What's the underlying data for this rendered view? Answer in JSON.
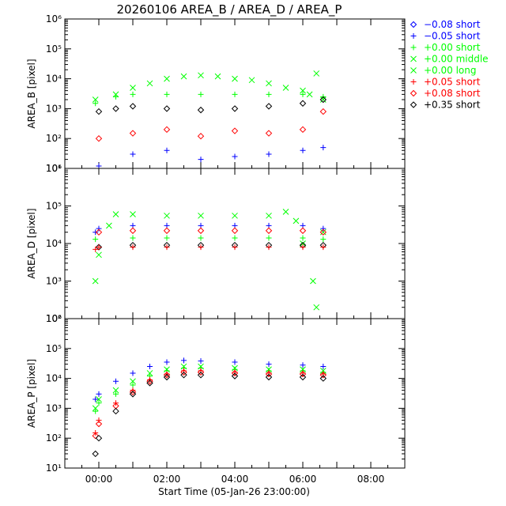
{
  "title": "20260106 AREA_B / AREA_D / AREA_P",
  "xlabel": "Start Time (05-Jan-26 23:00:00)",
  "colors": {
    "blue": "#0000ff",
    "green": "#00ff00",
    "red": "#ff0000",
    "black": "#000000"
  },
  "legend": [
    {
      "sym": "diamond",
      "color": "#0000ff",
      "text": "−0.08 short"
    },
    {
      "sym": "plus",
      "color": "#0000ff",
      "text": "−0.05 short"
    },
    {
      "sym": "plus",
      "color": "#00ff00",
      "text": "+0.00 short"
    },
    {
      "sym": "x",
      "color": "#00ff00",
      "text": "+0.00 middle"
    },
    {
      "sym": "x",
      "color": "#00ff00",
      "text": "+0.00 long"
    },
    {
      "sym": "plus",
      "color": "#ff0000",
      "text": "+0.05 short"
    },
    {
      "sym": "diamond",
      "color": "#ff0000",
      "text": "+0.08 short"
    },
    {
      "sym": "diamond",
      "color": "#000000",
      "text": "+0.35 short"
    }
  ],
  "chart_data": [
    {
      "type": "scatter",
      "ylabel": "AREA_B [pixel]",
      "xlim": [
        -1,
        9
      ],
      "ylim": [
        1,
        6
      ],
      "yscale": "log",
      "xticks": [
        "00:00",
        "02:00",
        "04:00",
        "06:00",
        "08:00"
      ],
      "yticks": [
        "10¹",
        "10²",
        "10³",
        "10⁴",
        "10⁵",
        "10⁶"
      ],
      "series": [
        {
          "color": "#00ff00",
          "sym": "x",
          "x": [
            -0.1,
            0.5,
            1,
            1.5,
            2,
            2.5,
            3,
            3.5,
            4,
            4.5,
            5,
            5.5,
            6,
            6.2,
            6.4,
            6.6
          ],
          "y": [
            2000,
            3000,
            5000,
            7000,
            10000,
            12000,
            13000,
            12000,
            10000,
            9000,
            7000,
            5000,
            4000,
            3000,
            15000,
            2000
          ]
        },
        {
          "color": "#00ff00",
          "sym": "plus",
          "x": [
            -0.1,
            0.5,
            1,
            2,
            3,
            4,
            5,
            6,
            6.6
          ],
          "y": [
            1500,
            2500,
            3000,
            3000,
            3000,
            3000,
            3000,
            3000,
            2500
          ]
        },
        {
          "color": "#000000",
          "sym": "diamond",
          "x": [
            0,
            0.5,
            1,
            2,
            3,
            4,
            5,
            6,
            6.6
          ],
          "y": [
            800,
            1000,
            1200,
            1000,
            900,
            1000,
            1200,
            1500,
            2000
          ]
        },
        {
          "color": "#ff0000",
          "sym": "diamond",
          "x": [
            0,
            1,
            2,
            3,
            4,
            5,
            6,
            6.6
          ],
          "y": [
            100,
            150,
            200,
            120,
            180,
            150,
            200,
            800
          ]
        },
        {
          "color": "#0000ff",
          "sym": "plus",
          "x": [
            0,
            1,
            2,
            3,
            4,
            5,
            6,
            6.6
          ],
          "y": [
            12,
            30,
            40,
            20,
            25,
            30,
            40,
            50
          ]
        }
      ]
    },
    {
      "type": "scatter",
      "ylabel": "AREA_D [pixel]",
      "xlim": [
        -1,
        9
      ],
      "ylim": [
        2,
        6
      ],
      "yscale": "log",
      "xticks": [
        "00:00",
        "02:00",
        "04:00",
        "06:00",
        "08:00"
      ],
      "yticks": [
        "10²",
        "10³",
        "10⁴",
        "10⁵",
        "10⁶"
      ],
      "series": [
        {
          "color": "#00ff00",
          "sym": "x",
          "x": [
            -0.1,
            0,
            0.3,
            0.5,
            1,
            2,
            3,
            4,
            5,
            5.5,
            5.8,
            6,
            6.3,
            6.4,
            6.6
          ],
          "y": [
            1000,
            5000,
            30000,
            60000,
            60000,
            55000,
            55000,
            55000,
            55000,
            70000,
            40000,
            10000,
            1000,
            200,
            20000
          ]
        },
        {
          "color": "#0000ff",
          "sym": "plus",
          "x": [
            -0.1,
            0,
            1,
            2,
            3,
            4,
            5,
            6,
            6.6
          ],
          "y": [
            20000,
            25000,
            30000,
            30000,
            30000,
            30000,
            30000,
            30000,
            25000
          ]
        },
        {
          "color": "#ff0000",
          "sym": "diamond",
          "x": [
            0,
            1,
            2,
            3,
            4,
            5,
            6,
            6.6
          ],
          "y": [
            20000,
            22000,
            22000,
            22000,
            22000,
            22000,
            22000,
            20000
          ]
        },
        {
          "color": "#00ff00",
          "sym": "plus",
          "x": [
            -0.1,
            1,
            2,
            3,
            4,
            5,
            6,
            6.6
          ],
          "y": [
            13000,
            14000,
            14000,
            14000,
            14000,
            14000,
            14000,
            13000
          ]
        },
        {
          "color": "#000000",
          "sym": "diamond",
          "x": [
            0,
            1,
            2,
            3,
            4,
            5,
            6,
            6.6
          ],
          "y": [
            8000,
            9000,
            9000,
            9000,
            9000,
            9000,
            9000,
            9000
          ]
        },
        {
          "color": "#ff0000",
          "sym": "plus",
          "x": [
            -0.1,
            0,
            1,
            2,
            3,
            4,
            5,
            6,
            6.6
          ],
          "y": [
            7000,
            8000,
            8000,
            8000,
            8000,
            8000,
            8000,
            8000,
            8000
          ]
        }
      ]
    },
    {
      "type": "scatter",
      "ylabel": "AREA_P [pixel]",
      "xlim": [
        -1,
        9
      ],
      "ylim": [
        1,
        6
      ],
      "yscale": "log",
      "xticks": [
        "00:00",
        "02:00",
        "04:00",
        "06:00",
        "08:00"
      ],
      "yticks": [
        "10¹",
        "10²",
        "10³",
        "10⁴",
        "10⁵",
        "10⁶"
      ],
      "series": [
        {
          "color": "#0000ff",
          "sym": "plus",
          "x": [
            -0.1,
            0,
            0.5,
            1,
            1.5,
            2,
            2.5,
            3,
            4,
            5,
            6,
            6.6
          ],
          "y": [
            2000,
            3000,
            8000,
            15000,
            25000,
            35000,
            40000,
            38000,
            35000,
            30000,
            28000,
            25000
          ]
        },
        {
          "color": "#00ff00",
          "sym": "x",
          "x": [
            -0.1,
            0,
            0.5,
            1,
            1.5,
            2,
            2.5,
            3,
            4,
            5,
            6,
            6.6
          ],
          "y": [
            1000,
            2000,
            4000,
            8000,
            15000,
            20000,
            25000,
            25000,
            22000,
            20000,
            20000,
            18000
          ]
        },
        {
          "color": "#00ff00",
          "sym": "plus",
          "x": [
            -0.1,
            0,
            0.5,
            1,
            1.5,
            2,
            2.5,
            3,
            4,
            5,
            6,
            6.6
          ],
          "y": [
            800,
            1500,
            3000,
            6000,
            12000,
            18000,
            22000,
            22000,
            20000,
            18000,
            18000,
            16000
          ]
        },
        {
          "color": "#ff0000",
          "sym": "plus",
          "x": [
            -0.1,
            0,
            0.5,
            1,
            1.5,
            2,
            2.5,
            3,
            4,
            5,
            6,
            6.6
          ],
          "y": [
            150,
            400,
            1500,
            4000,
            9000,
            14000,
            18000,
            18000,
            16000,
            15000,
            15000,
            14000
          ]
        },
        {
          "color": "#ff0000",
          "sym": "diamond",
          "x": [
            -0.1,
            0,
            0.5,
            1,
            1.5,
            2,
            2.5,
            3,
            4,
            5,
            6,
            6.6
          ],
          "y": [
            120,
            300,
            1200,
            3500,
            8000,
            13000,
            16000,
            16000,
            15000,
            14000,
            14000,
            13000
          ]
        },
        {
          "color": "#000000",
          "sym": "diamond",
          "x": [
            -0.1,
            0,
            0.5,
            1,
            1.5,
            2,
            2.5,
            3,
            4,
            5,
            6,
            6.6
          ],
          "y": [
            30,
            100,
            800,
            3000,
            7000,
            11000,
            13000,
            13000,
            12000,
            11000,
            11000,
            10000
          ]
        }
      ]
    }
  ]
}
